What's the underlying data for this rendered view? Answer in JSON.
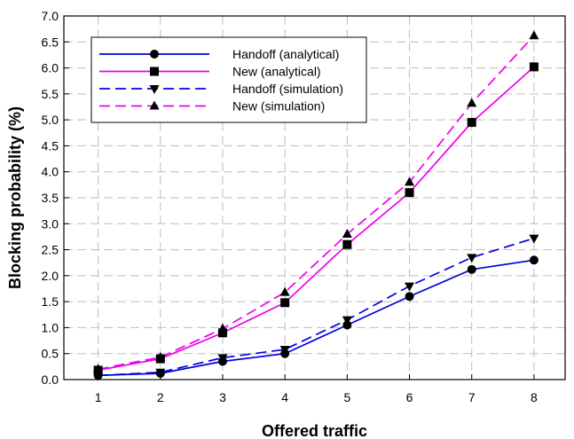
{
  "chart_data": {
    "type": "line",
    "xlabel": "Offered traffic",
    "ylabel": "Blocking probability (%)",
    "x": [
      1,
      2,
      3,
      4,
      5,
      6,
      7,
      8
    ],
    "xticks": [
      "1",
      "2",
      "3",
      "4",
      "5",
      "6",
      "7",
      "8"
    ],
    "xlim": [
      0.45,
      8.5
    ],
    "ylim": [
      0,
      7
    ],
    "yticks": [
      "0.0",
      "0.5",
      "1.0",
      "1.5",
      "2.0",
      "2.5",
      "3.0",
      "3.5",
      "4.0",
      "4.5",
      "5.0",
      "5.5",
      "6.0",
      "6.5",
      "7.0"
    ],
    "grid": true,
    "legend_position": "top-left",
    "series": [
      {
        "name": "Handoff (analytical)",
        "color": "#0000dd",
        "dash": "solid",
        "marker": "circle",
        "values": [
          0.08,
          0.12,
          0.35,
          0.5,
          1.05,
          1.6,
          2.12,
          2.3
        ]
      },
      {
        "name": "New (analytical)",
        "color": "#ee00ee",
        "dash": "solid",
        "marker": "square",
        "values": [
          0.18,
          0.4,
          0.9,
          1.48,
          2.6,
          3.6,
          4.95,
          6.02
        ]
      },
      {
        "name": "Handoff (simulation)",
        "color": "#0000dd",
        "dash": "dashed",
        "marker": "triangle-down",
        "values": [
          0.08,
          0.14,
          0.42,
          0.58,
          1.15,
          1.8,
          2.35,
          2.72
        ]
      },
      {
        "name": "New (simulation)",
        "color": "#ee00ee",
        "dash": "dashed",
        "marker": "triangle-up",
        "values": [
          0.2,
          0.43,
          0.98,
          1.68,
          2.8,
          3.8,
          5.32,
          6.62
        ]
      }
    ]
  }
}
